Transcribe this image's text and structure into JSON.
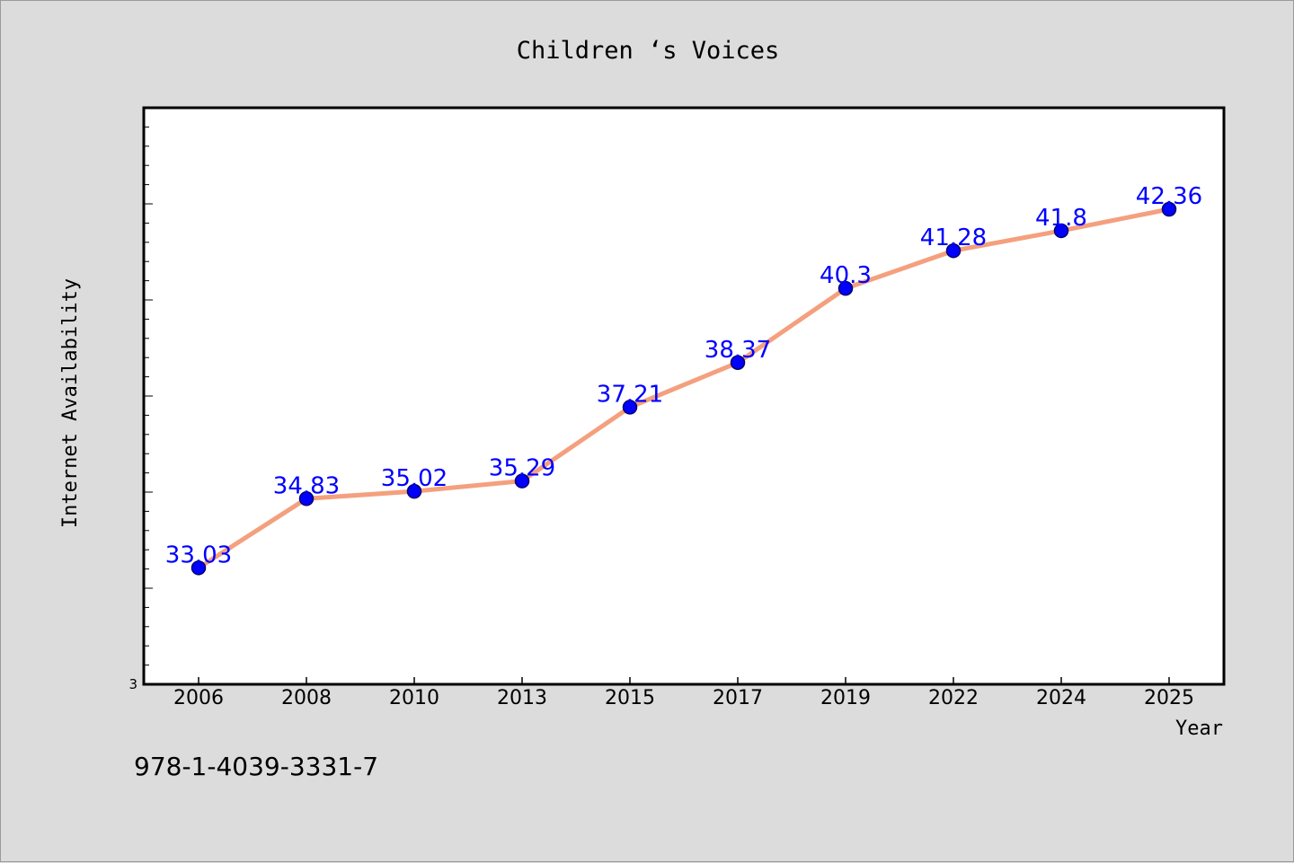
{
  "chart_data": {
    "type": "line",
    "title": "Children ‘s Voices",
    "xlabel": "Year",
    "ylabel": "Internet Availability",
    "categories": [
      "2006",
      "2008",
      "2010",
      "2013",
      "2015",
      "2017",
      "2019",
      "2022",
      "2024",
      "2025"
    ],
    "series": [
      {
        "values": [
          33.03,
          34.83,
          35.02,
          35.29,
          37.21,
          38.37,
          40.3,
          41.28,
          41.8,
          42.36
        ],
        "data_labels": [
          "33.03",
          "34.83",
          "35.02",
          "35.29",
          "37.21",
          "38.37",
          "40.3",
          "41.28",
          "41.8",
          "42.36"
        ]
      }
    ],
    "ylim": [
      30,
      45
    ],
    "ytick_label_min": "3",
    "grid": false,
    "legend": "none",
    "colors": {
      "line": "#f4a07e",
      "marker": "#0000ff",
      "marker_edge": "#00006b",
      "data_label": "#0000ff",
      "plot_bg": "#ffffff",
      "page_bg": "#dcdcdc"
    }
  },
  "footer": {
    "isbn": "978-1-4039-3331-7"
  }
}
